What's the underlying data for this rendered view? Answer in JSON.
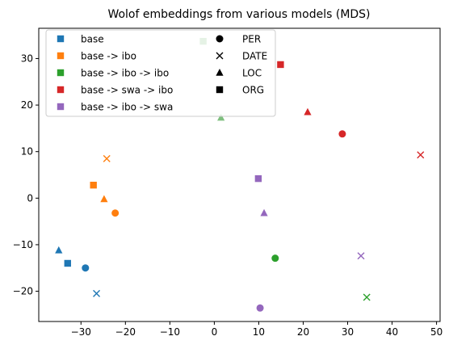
{
  "chart_data": {
    "type": "scatter",
    "title": "Wolof embeddings from various models (MDS)",
    "xlabel": "",
    "ylabel": "",
    "xlim": [
      -39.5,
      50.8
    ],
    "ylim": [
      -26.5,
      36.5
    ],
    "xticks": [
      -30,
      -20,
      -10,
      0,
      10,
      20,
      30,
      40,
      50
    ],
    "yticks": [
      -20,
      -10,
      0,
      10,
      20,
      30
    ],
    "grid": false,
    "legend_position": "top-left",
    "series": [
      {
        "name": "base",
        "color": "#1f77b4",
        "points": [
          {
            "x": -29,
            "y": -15,
            "entity": "PER"
          },
          {
            "x": -26.5,
            "y": -20.5,
            "entity": "DATE"
          },
          {
            "x": -35,
            "y": -11.2,
            "entity": "LOC"
          },
          {
            "x": -33,
            "y": -14,
            "entity": "ORG"
          }
        ]
      },
      {
        "name": "base -> ibo",
        "color": "#ff7f0e",
        "points": [
          {
            "x": -22.3,
            "y": -3.2,
            "entity": "PER"
          },
          {
            "x": -24.2,
            "y": 8.5,
            "entity": "DATE"
          },
          {
            "x": -24.8,
            "y": -0.2,
            "entity": "LOC"
          },
          {
            "x": -27.2,
            "y": 2.8,
            "entity": "ORG"
          }
        ]
      },
      {
        "name": "base -> ibo -> ibo",
        "color": "#2ca02c",
        "points": [
          {
            "x": 13.7,
            "y": -12.9,
            "entity": "PER"
          },
          {
            "x": 34.3,
            "y": -21.3,
            "entity": "DATE"
          }
        ]
      },
      {
        "name": "base -> swa -> ibo",
        "color": "#d62728",
        "points": [
          {
            "x": 28.8,
            "y": 13.8,
            "entity": "PER"
          },
          {
            "x": 46.4,
            "y": 9.3,
            "entity": "DATE"
          },
          {
            "x": 21,
            "y": 18.5,
            "entity": "LOC"
          },
          {
            "x": 14.9,
            "y": 28.7,
            "entity": "ORG"
          }
        ]
      },
      {
        "name": "base -> ibo -> swa",
        "color": "#9467bd",
        "points": [
          {
            "x": 10.3,
            "y": -23.6,
            "entity": "PER"
          },
          {
            "x": 33,
            "y": -12.4,
            "entity": "DATE"
          },
          {
            "x": 11.2,
            "y": -3.2,
            "entity": "LOC"
          },
          {
            "x": 9.9,
            "y": 4.2,
            "entity": "ORG"
          }
        ]
      },
      {
        "name": "",
        "color": "#7fbf7f",
        "points": [
          {
            "x": 1.5,
            "y": 17.3,
            "entity": "LOC"
          },
          {
            "x": -2.5,
            "y": 33.7,
            "entity": "ORG"
          }
        ]
      }
    ],
    "entity_markers": [
      {
        "name": "PER",
        "marker": "circle"
      },
      {
        "name": "DATE",
        "marker": "x"
      },
      {
        "name": "LOC",
        "marker": "triangle"
      },
      {
        "name": "ORG",
        "marker": "square"
      }
    ]
  }
}
